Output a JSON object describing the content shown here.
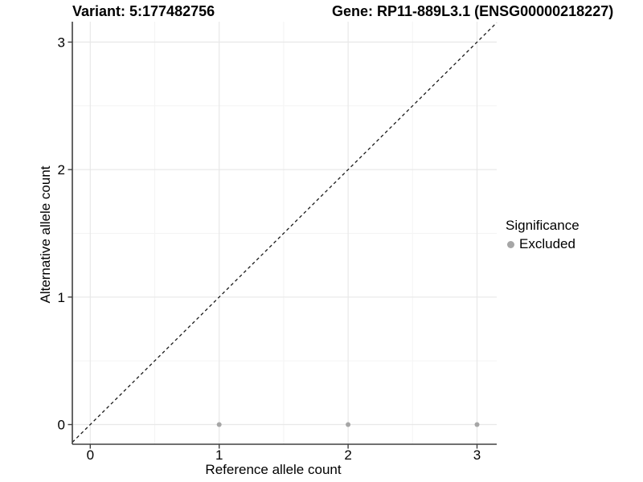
{
  "titles": {
    "left": "Variant: 5:177482756",
    "right": "Gene: RP11-889L3.1 (ENSG00000218227)"
  },
  "axes": {
    "x": {
      "label": "Reference allele count",
      "ticks": [
        0,
        1,
        2,
        3
      ],
      "minor_ticks": [
        0.5,
        1.5,
        2.5
      ]
    },
    "y": {
      "label": "Alternative allele count",
      "ticks": [
        0,
        1,
        2,
        3
      ],
      "minor_ticks": [
        0.5,
        1.5,
        2.5
      ]
    }
  },
  "legend": {
    "title": "Significance",
    "items": [
      {
        "label": "Excluded",
        "color": "#a6a6a6"
      }
    ]
  },
  "chart_data": {
    "type": "scatter",
    "title_left": "Variant: 5:177482756",
    "title_right": "Gene: RP11-889L3.1 (ENSG00000218227)",
    "xlabel": "Reference allele count",
    "ylabel": "Alternative allele count",
    "xlim": [
      -0.14,
      3.16
    ],
    "ylim": [
      -0.16,
      3.16
    ],
    "x_ticks": [
      0,
      1,
      2,
      3
    ],
    "y_ticks": [
      0,
      1,
      2,
      3
    ],
    "grid": "major and minor gridlines, white background",
    "legend_position": "right",
    "series": [
      {
        "name": "Excluded",
        "color": "#a6a6a6",
        "marker": "circle",
        "points": [
          [
            1,
            0
          ],
          [
            2,
            0
          ],
          [
            3,
            0
          ]
        ]
      }
    ],
    "reference_line": {
      "slope": 1,
      "intercept": 0,
      "style": "dashed",
      "color": "#1a1a1a"
    }
  },
  "colors": {
    "axis": "#404040",
    "grid_major": "#e8e8e8",
    "grid_minor": "#f4f4f4",
    "point": "#a6a6a6",
    "dashed_line": "#1a1a1a",
    "text": "#000000"
  }
}
